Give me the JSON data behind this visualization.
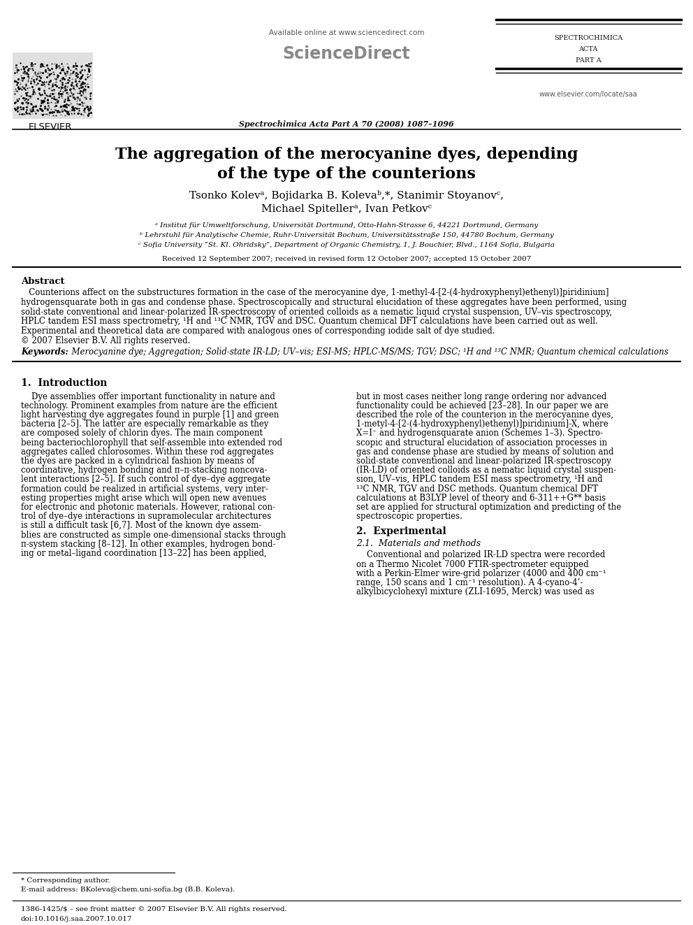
{
  "bg_color": "#ffffff",
  "title_line1": "The aggregation of the merocyanine dyes, depending",
  "title_line2": "of the type of the counterions",
  "authors_line1": "Tsonko Kolevᵃ, Bojidarka B. Kolevaᵇ,*, Stanimir Stoyanovᶜ,",
  "authors_line2": "Michael Spitellerᵃ, Ivan Petkovᶜ",
  "affil_a": "ᵃ Institut für Umweltforschung, Universität Dortmund, Otto-Hahn-Strasse 6, 44221 Dortmund, Germany",
  "affil_b": "ᵇ Lehrstuhl für Analytische Chemie, Ruhr-Universität Bochum, Universitätsstraße 150, 44780 Bochum, Germany",
  "affil_c": "ᶜ Sofia University “St. Kl. Ohridsky”, Department of Organic Chemistry, 1, J. Bouchier, Blvd., 1164 Sofia, Bulgaria",
  "received": "Received 12 September 2007; received in revised form 12 October 2007; accepted 15 October 2007",
  "abstract_title": "Abstract",
  "abstract_indent": "   Counterions affect on the substructures formation in the case of the merocyanine dye, 1-methyl-4-[2-(4-hydroxyphenyl)ethenyl)]piridinium]",
  "abstract_lines": [
    "   Counterions affect on the substructures formation in the case of the merocyanine dye, 1-methyl-4-[2-(4-hydroxyphenyl)ethenyl)]piridinium]",
    "hydrogensquarate both in gas and condense phase. Spectroscopically and structural elucidation of these aggregates have been performed, using",
    "solid-state conventional and linear-polarized IR-spectroscopy of oriented colloids as a nematic liquid crystal suspension, UV–vis spectroscopy,",
    "HPLC tandem ESI mass spectrometry, ¹H and ¹³C NMR, TGV and DSC. Quantum chemical DFT calculations have been carried out as well.",
    "Experimental and theoretical data are compared with analogous ones of corresponding iodide salt of dye studied.",
    "© 2007 Elsevier B.V. All rights reserved."
  ],
  "keywords_label": "Keywords:",
  "keywords_text": "  Merocyanine dye; Aggregation; Solid-state IR-LD; UV–vis; ESI-MS; HPLC-MS/MS; TGV; DSC; ¹H and ¹³C NMR; Quantum chemical calculations",
  "section1_title": "1.  Introduction",
  "section1_col1": [
    "    Dye assemblies offer important functionality in nature and",
    "technology. Prominent examples from nature are the efficient",
    "light harvesting dye aggregates found in purple [1] and green",
    "bacteria [2–5]. The latter are especially remarkable as they",
    "are composed solely of chlorin dyes. The main component",
    "being bacteriochlorophyll that self-assemble into extended rod",
    "aggregates called chlorosomes. Within these rod aggregates",
    "the dyes are packed in a cylindrical fashion by means of",
    "coordinative, hydrogen bonding and π–π-stacking noncova-",
    "lent interactions [2–5]. If such control of dye–dye aggregate",
    "formation could be realized in artificial systems, very inter-",
    "esting properties might arise which will open new avenues",
    "for electronic and photonic materials. However, rational con-",
    "trol of dye–dye interactions in supramolecular architectures",
    "is still a difficult task [6,7]. Most of the known dye assem-",
    "blies are constructed as simple one-dimensional stacks through",
    "π-system stacking [8–12]. In other examples, hydrogen bond-",
    "ing or metal–ligand coordination [13–22] has been applied,"
  ],
  "section1_col2": [
    "but in most cases neither long range ordering nor advanced",
    "functionality could be achieved [23–28]. In our paper we are",
    "described the role of the counterion in the merocyanine dyes,",
    "1-metyl-4-[2-(4-hydroxyphenyl)ethenyl)]piridinium]-X, where",
    "X=I⁻ and hydrogensquarate anion (Schemes 1–3). Spectro-",
    "scopic and structural elucidation of association processes in",
    "gas and condense phase are studied by means of solution and",
    "solid-state conventional and linear-polarized IR-spectroscopy",
    "(IR-LD) of oriented colloids as a nematic liquid crystal suspen-",
    "sion, UV–vis, HPLC tandem ESI mass spectrometry, ¹H and",
    "¹³C NMR, TGV and DSC methods. Quantum chemical DFT",
    "calculations at B3LYP level of theory and 6-311++G** basis",
    "set are applied for structural optimization and predicting of the",
    "spectroscopic properties."
  ],
  "section2_title": "2.  Experimental",
  "section21_title": "2.1.  Materials and methods",
  "section21_lines": [
    "    Conventional and polarized IR-LD spectra were recorded",
    "on a Thermo Nicolet 7000 FTIR-spectrometer equipped",
    "with a Perkin-Elmer wire-grid polarizer (4000 and 400 cm⁻¹",
    "range, 150 scans and 1 cm⁻¹ resolution). A 4-cyano-4’-",
    "alkylbicyclohexyl mixture (ZLI-1695, Merck) was used as"
  ],
  "header_available": "Available online at www.sciencedirect.com",
  "header_journal": "Spectrochimica Acta Part A 70 (2008) 1087–1096",
  "header_spectro1": "SPECTROCHIMICA",
  "header_spectro2": "ACTA",
  "header_spectro3": "PART A",
  "footer_issn": "1386-1425/$ – see front matter © 2007 Elsevier B.V. All rights reserved.",
  "footer_doi": "doi:10.1016/j.saa.2007.10.017",
  "footer_corresp": "* Corresponding author.",
  "footer_email": "E-mail address: BKoleva@chem.uni-sofia.bg (B.B. Koleva).",
  "website": "www.elsevier.com/locate/saa",
  "elsevier_text": "ELSEVIER"
}
